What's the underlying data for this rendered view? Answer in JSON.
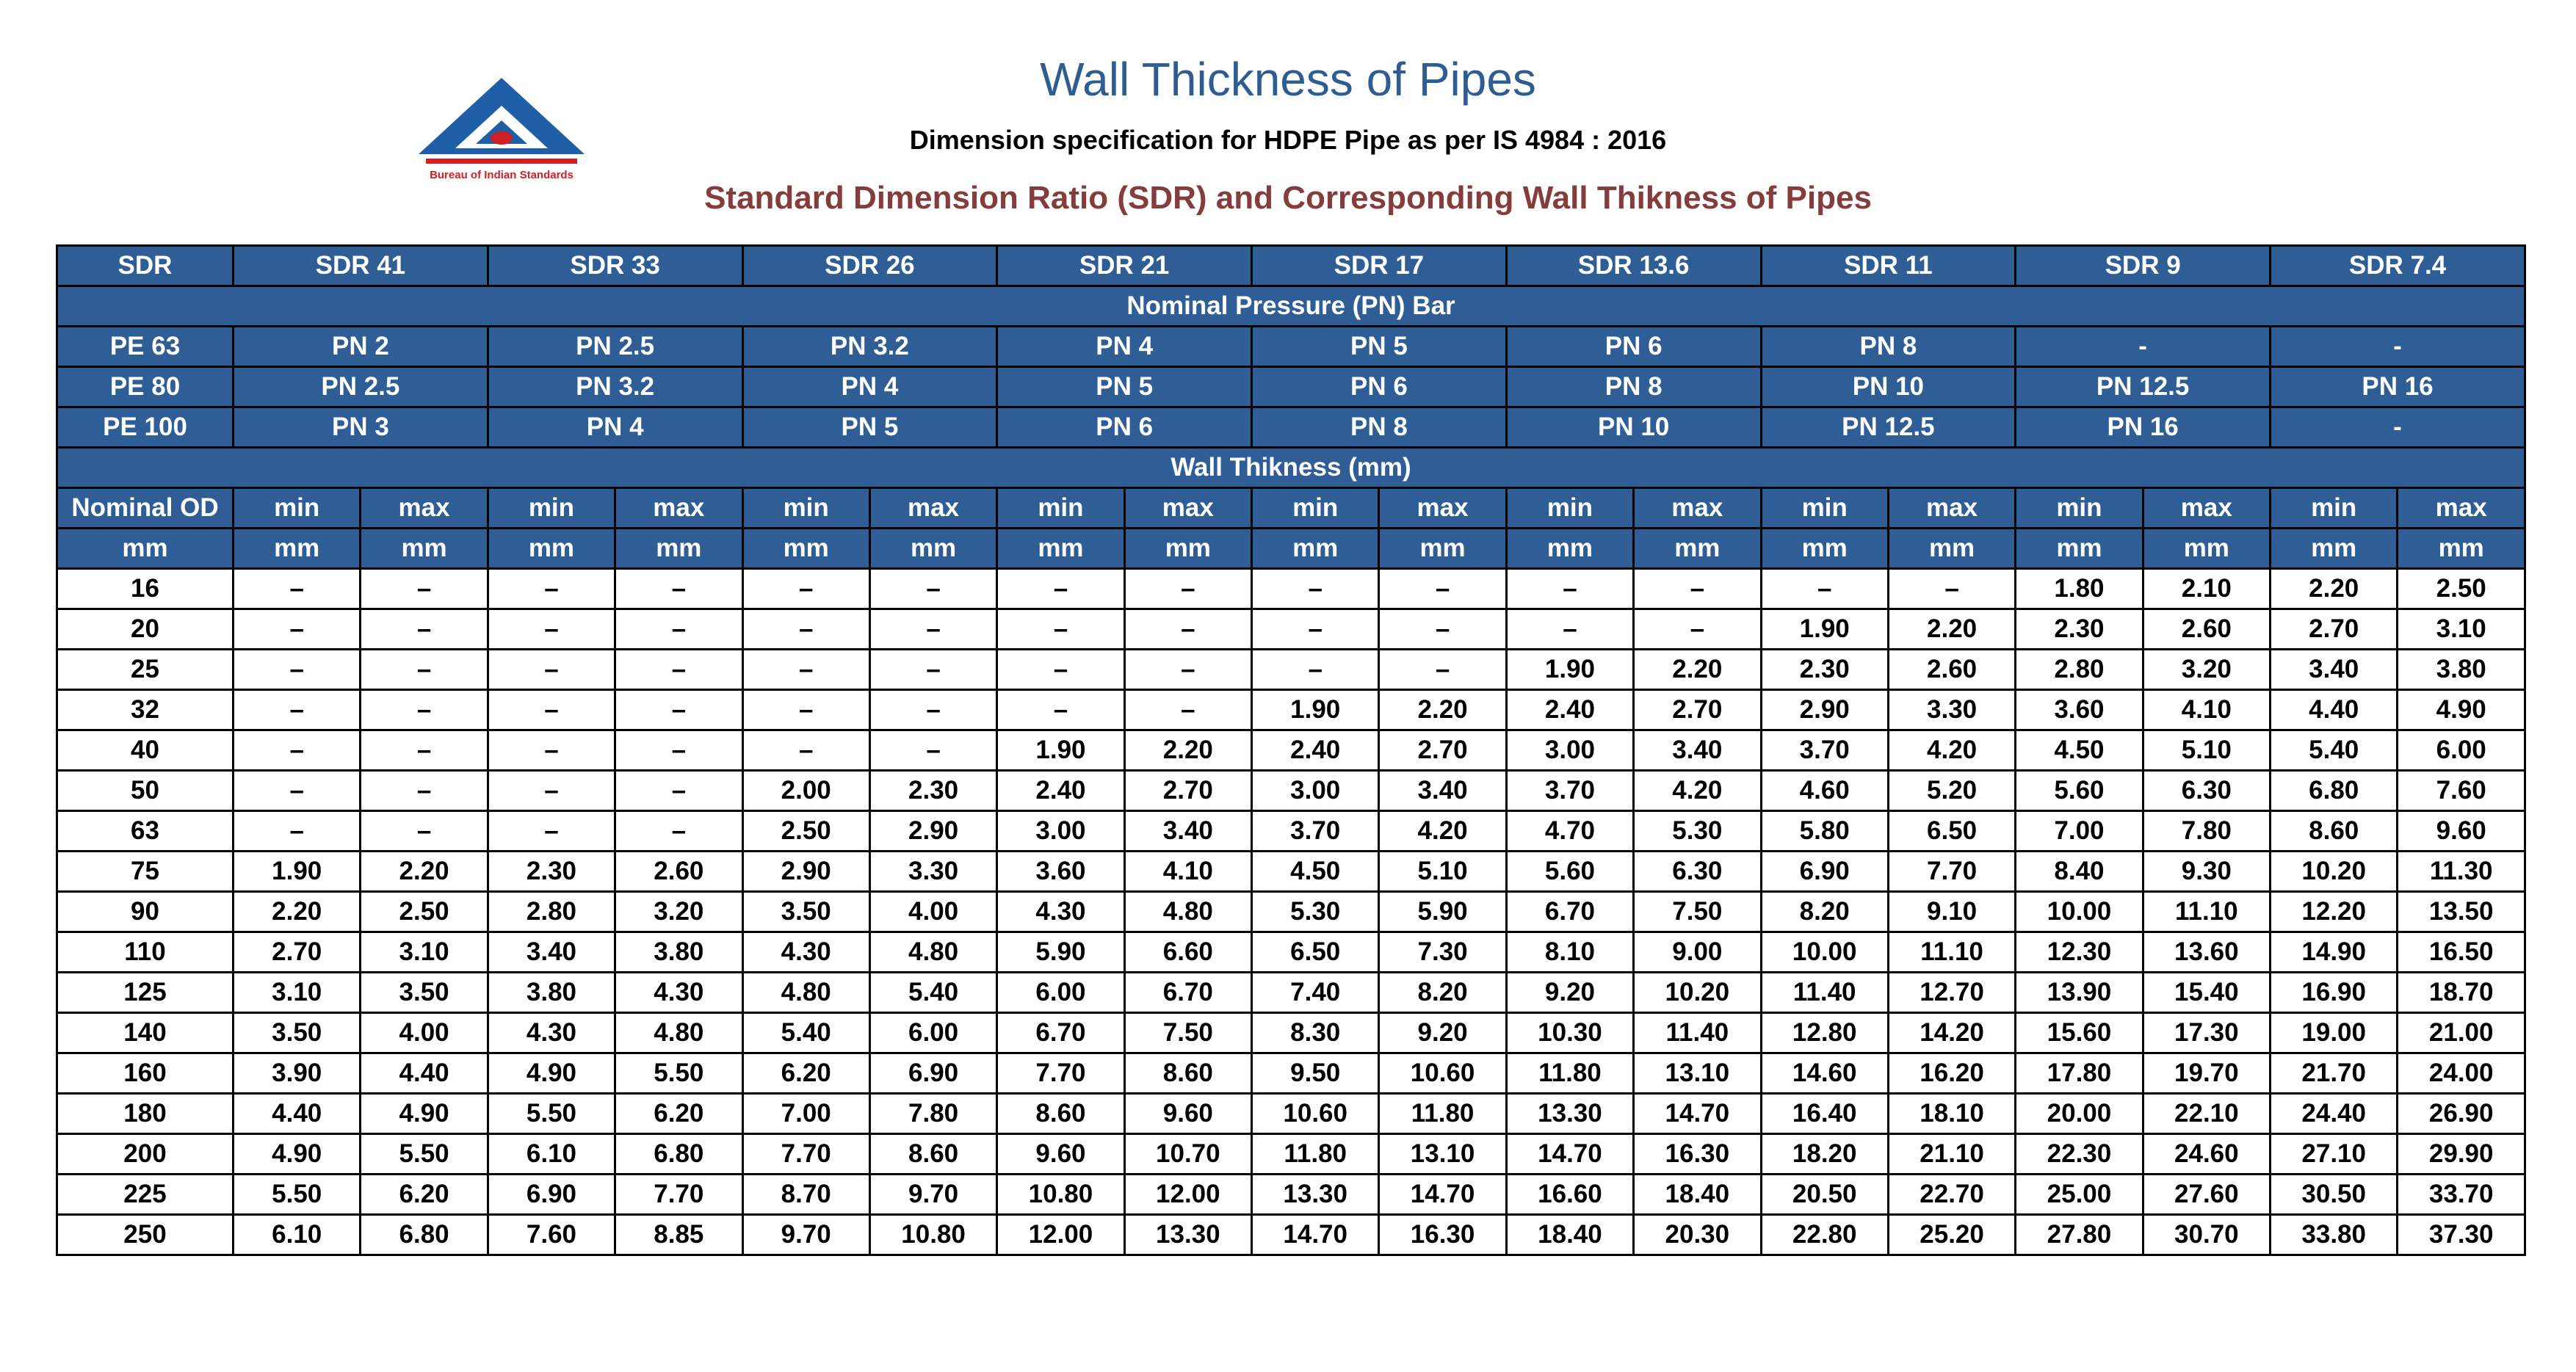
{
  "header": {
    "title": "Wall Thickness of Pipes",
    "subtitle": "Dimension specification for HDPE Pipe as per IS 4984 : 2016",
    "heading": "Standard Dimension Ratio (SDR) and Corresponding Wall Thikness of Pipes",
    "logo_text": "Bureau of Indian Standards"
  },
  "colors": {
    "header_bg": "#2f5d95",
    "title": "#2e5d93",
    "heading": "#843c3c"
  },
  "table": {
    "sdr_label": "SDR",
    "sdr_values": [
      "SDR 41",
      "SDR 33",
      "SDR 26",
      "SDR 21",
      "SDR 17",
      "SDR 13.6",
      "SDR 11",
      "SDR 9",
      "SDR 7.4"
    ],
    "pn_heading": "Nominal Pressure (PN) Bar",
    "pe_rows": [
      {
        "grade": "PE 63",
        "values": [
          "PN 2",
          "PN 2.5",
          "PN 3.2",
          "PN 4",
          "PN 5",
          "PN 6",
          "PN 8",
          "-",
          "-"
        ]
      },
      {
        "grade": "PE 80",
        "values": [
          "PN 2.5",
          "PN 3.2",
          "PN 4",
          "PN 5",
          "PN 6",
          "PN 8",
          "PN 10",
          "PN 12.5",
          "PN 16"
        ]
      },
      {
        "grade": "PE 100",
        "values": [
          "PN 3",
          "PN 4",
          "PN 5",
          "PN 6",
          "PN 8",
          "PN 10",
          "PN 12.5",
          "PN 16",
          "-"
        ]
      }
    ],
    "wall_heading": "Wall Thikness (mm)",
    "od_label": "Nominal OD",
    "min_label": "min",
    "max_label": "max",
    "unit_label": "mm",
    "rows": [
      {
        "od": "16",
        "values": [
          "–",
          "–",
          "–",
          "–",
          "–",
          "–",
          "–",
          "–",
          "–",
          "–",
          "–",
          "–",
          "–",
          "–",
          "1.80",
          "2.10",
          "2.20",
          "2.50"
        ]
      },
      {
        "od": "20",
        "values": [
          "–",
          "–",
          "–",
          "–",
          "–",
          "–",
          "–",
          "–",
          "–",
          "–",
          "–",
          "–",
          "1.90",
          "2.20",
          "2.30",
          "2.60",
          "2.70",
          "3.10"
        ]
      },
      {
        "od": "25",
        "values": [
          "–",
          "–",
          "–",
          "–",
          "–",
          "–",
          "–",
          "–",
          "–",
          "–",
          "1.90",
          "2.20",
          "2.30",
          "2.60",
          "2.80",
          "3.20",
          "3.40",
          "3.80"
        ]
      },
      {
        "od": "32",
        "values": [
          "–",
          "–",
          "–",
          "–",
          "–",
          "–",
          "–",
          "–",
          "1.90",
          "2.20",
          "2.40",
          "2.70",
          "2.90",
          "3.30",
          "3.60",
          "4.10",
          "4.40",
          "4.90"
        ]
      },
      {
        "od": "40",
        "values": [
          "–",
          "–",
          "–",
          "–",
          "–",
          "–",
          "1.90",
          "2.20",
          "2.40",
          "2.70",
          "3.00",
          "3.40",
          "3.70",
          "4.20",
          "4.50",
          "5.10",
          "5.40",
          "6.00"
        ]
      },
      {
        "od": "50",
        "values": [
          "–",
          "–",
          "–",
          "–",
          "2.00",
          "2.30",
          "2.40",
          "2.70",
          "3.00",
          "3.40",
          "3.70",
          "4.20",
          "4.60",
          "5.20",
          "5.60",
          "6.30",
          "6.80",
          "7.60"
        ]
      },
      {
        "od": "63",
        "values": [
          "–",
          "–",
          "–",
          "–",
          "2.50",
          "2.90",
          "3.00",
          "3.40",
          "3.70",
          "4.20",
          "4.70",
          "5.30",
          "5.80",
          "6.50",
          "7.00",
          "7.80",
          "8.60",
          "9.60"
        ]
      },
      {
        "od": "75",
        "values": [
          "1.90",
          "2.20",
          "2.30",
          "2.60",
          "2.90",
          "3.30",
          "3.60",
          "4.10",
          "4.50",
          "5.10",
          "5.60",
          "6.30",
          "6.90",
          "7.70",
          "8.40",
          "9.30",
          "10.20",
          "11.30"
        ]
      },
      {
        "od": "90",
        "values": [
          "2.20",
          "2.50",
          "2.80",
          "3.20",
          "3.50",
          "4.00",
          "4.30",
          "4.80",
          "5.30",
          "5.90",
          "6.70",
          "7.50",
          "8.20",
          "9.10",
          "10.00",
          "11.10",
          "12.20",
          "13.50"
        ]
      },
      {
        "od": "110",
        "values": [
          "2.70",
          "3.10",
          "3.40",
          "3.80",
          "4.30",
          "4.80",
          "5.90",
          "6.60",
          "6.50",
          "7.30",
          "8.10",
          "9.00",
          "10.00",
          "11.10",
          "12.30",
          "13.60",
          "14.90",
          "16.50"
        ]
      },
      {
        "od": "125",
        "values": [
          "3.10",
          "3.50",
          "3.80",
          "4.30",
          "4.80",
          "5.40",
          "6.00",
          "6.70",
          "7.40",
          "8.20",
          "9.20",
          "10.20",
          "11.40",
          "12.70",
          "13.90",
          "15.40",
          "16.90",
          "18.70"
        ]
      },
      {
        "od": "140",
        "values": [
          "3.50",
          "4.00",
          "4.30",
          "4.80",
          "5.40",
          "6.00",
          "6.70",
          "7.50",
          "8.30",
          "9.20",
          "10.30",
          "11.40",
          "12.80",
          "14.20",
          "15.60",
          "17.30",
          "19.00",
          "21.00"
        ]
      },
      {
        "od": "160",
        "values": [
          "3.90",
          "4.40",
          "4.90",
          "5.50",
          "6.20",
          "6.90",
          "7.70",
          "8.60",
          "9.50",
          "10.60",
          "11.80",
          "13.10",
          "14.60",
          "16.20",
          "17.80",
          "19.70",
          "21.70",
          "24.00"
        ]
      },
      {
        "od": "180",
        "values": [
          "4.40",
          "4.90",
          "5.50",
          "6.20",
          "7.00",
          "7.80",
          "8.60",
          "9.60",
          "10.60",
          "11.80",
          "13.30",
          "14.70",
          "16.40",
          "18.10",
          "20.00",
          "22.10",
          "24.40",
          "26.90"
        ]
      },
      {
        "od": "200",
        "values": [
          "4.90",
          "5.50",
          "6.10",
          "6.80",
          "7.70",
          "8.60",
          "9.60",
          "10.70",
          "11.80",
          "13.10",
          "14.70",
          "16.30",
          "18.20",
          "21.10",
          "22.30",
          "24.60",
          "27.10",
          "29.90"
        ]
      },
      {
        "od": "225",
        "values": [
          "5.50",
          "6.20",
          "6.90",
          "7.70",
          "8.70",
          "9.70",
          "10.80",
          "12.00",
          "13.30",
          "14.70",
          "16.60",
          "18.40",
          "20.50",
          "22.70",
          "25.00",
          "27.60",
          "30.50",
          "33.70"
        ]
      },
      {
        "od": "250",
        "values": [
          "6.10",
          "6.80",
          "7.60",
          "8.85",
          "9.70",
          "10.80",
          "12.00",
          "13.30",
          "14.70",
          "16.30",
          "18.40",
          "20.30",
          "22.80",
          "25.20",
          "27.80",
          "30.70",
          "33.80",
          "37.30"
        ]
      }
    ]
  }
}
